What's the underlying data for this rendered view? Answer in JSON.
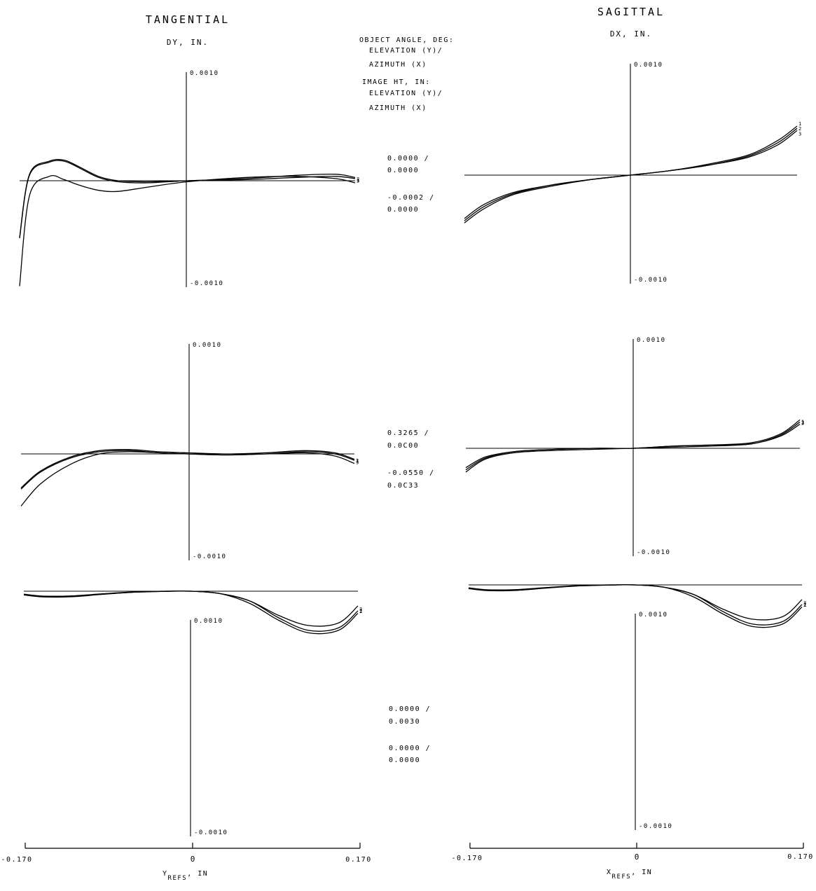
{
  "chart_data": {
    "type": "line",
    "headers": {
      "tangential_title": "TANGENTIAL",
      "tangential_ylabel": "DY, IN.",
      "sagittal_title": "SAGITTAL",
      "sagittal_ylabel": "DX, IN.",
      "object_angle_label": [
        "OBJECT ANGLE, DEG:",
        "ELEVATION (Y)/",
        "AZIMUTH (X)"
      ],
      "image_ht_label": [
        "IMAGE HT, IN:",
        "ELEVATION (Y)/",
        "AZIMUTH (X)"
      ]
    },
    "x_axis": {
      "tangential_label": "Y",
      "tangential_subscript": "REFS",
      "tangential_unit": ", IN",
      "sagittal_label": "X",
      "sagittal_subscript": "REFS",
      "sagittal_unit": ", IN",
      "range": [
        -0.17,
        0.17
      ],
      "tick_left": "-0.170",
      "tick_mid": "0",
      "tick_right": "0.170"
    },
    "y_range": [
      -0.001,
      0.001
    ],
    "y_tick_top": "0.0010",
    "y_tick_bottom": "-0.0010",
    "rows": [
      {
        "field_labels": [
          "0.0000 /",
          "0.0000",
          "-0.0002 /",
          "0.0000"
        ],
        "tangential": {
          "series": [
            {
              "name": "1",
              "x": [
                -0.17,
                -0.16,
                -0.14,
                -0.125,
                -0.11,
                -0.09,
                -0.07,
                -0.04,
                0.0,
                0.06,
                0.11,
                0.15,
                0.17
              ],
              "y": [
                -0.00099,
                -0.00014,
                4e-05,
                1e-05,
                -4e-05,
                -9e-05,
                -0.0001,
                -6e-05,
                -1e-05,
                3e-05,
                4e-05,
                2e-05,
                -2e-05
              ]
            },
            {
              "name": "2",
              "x": [
                -0.17,
                -0.16,
                -0.14,
                -0.125,
                -0.11,
                -0.09,
                -0.07,
                -0.04,
                0.0,
                0.06,
                0.11,
                0.15,
                0.17
              ],
              "y": [
                -0.00054,
                5e-05,
                0.00017,
                0.00018,
                0.00012,
                3e-05,
                -1e-05,
                -2e-05,
                0.0,
                1e-05,
                3e-05,
                4e-05,
                2e-05
              ]
            },
            {
              "name": "3",
              "x": [
                -0.17,
                -0.16,
                -0.14,
                -0.125,
                -0.11,
                -0.09,
                -0.07,
                -0.04,
                0.0,
                0.06,
                0.11,
                0.15,
                0.17
              ],
              "y": [
                -0.00053,
                6e-05,
                0.00018,
                0.00019,
                0.00013,
                4e-05,
                0.0,
                -1e-05,
                0.0,
                2e-05,
                5e-05,
                6e-05,
                3e-05
              ]
            }
          ]
        },
        "sagittal": {
          "series": [
            {
              "name": "1",
              "x": [
                -0.17,
                -0.15,
                -0.12,
                -0.08,
                -0.04,
                0.0,
                0.04,
                0.08,
                0.12,
                0.15,
                0.17
              ],
              "y": [
                -0.00044,
                -0.00031,
                -0.00018,
                -0.0001,
                -4e-05,
                0.0,
                4e-05,
                0.0001,
                0.00018,
                0.00031,
                0.00044
              ]
            },
            {
              "name": "2",
              "x": [
                -0.17,
                -0.15,
                -0.12,
                -0.08,
                -0.04,
                0.0,
                0.04,
                0.08,
                0.12,
                0.15,
                0.17
              ],
              "y": [
                -0.00042,
                -0.00029,
                -0.00017,
                -9e-05,
                -4e-05,
                0.0,
                4e-05,
                9e-05,
                0.00017,
                0.00029,
                0.00042
              ]
            },
            {
              "name": "3",
              "x": [
                -0.17,
                -0.15,
                -0.12,
                -0.08,
                -0.04,
                0.0,
                0.04,
                0.08,
                0.12,
                0.15,
                0.17
              ],
              "y": [
                -0.0004,
                -0.00027,
                -0.00016,
                -9e-05,
                -4e-05,
                0.0,
                4e-05,
                9e-05,
                0.00016,
                0.00027,
                0.0004
              ]
            }
          ]
        }
      },
      {
        "field_labels": [
          "0.3265 /",
          "0.0C00",
          "-0.0550 /",
          "0.0C33"
        ],
        "tangential": {
          "series": [
            {
              "name": "1",
              "x": [
                -0.17,
                -0.15,
                -0.12,
                -0.09,
                -0.06,
                -0.03,
                0.0,
                0.04,
                0.08,
                0.12,
                0.15,
                0.17
              ],
              "y": [
                -0.00049,
                -0.00028,
                -0.0001,
                0.0,
                2e-05,
                1e-05,
                0.0,
                -1e-05,
                0.0,
                1e-05,
                -2e-05,
                -9e-05
              ]
            },
            {
              "name": "2",
              "x": [
                -0.17,
                -0.15,
                -0.12,
                -0.09,
                -0.06,
                -0.03,
                0.0,
                0.04,
                0.08,
                0.12,
                0.15,
                0.17
              ],
              "y": [
                -0.00033,
                -0.00017,
                -4e-05,
                2e-05,
                3e-05,
                1e-05,
                0.0,
                -1e-05,
                0.0,
                2e-05,
                0.0,
                -6e-05
              ]
            },
            {
              "name": "3",
              "x": [
                -0.17,
                -0.15,
                -0.12,
                -0.09,
                -0.06,
                -0.03,
                0.0,
                0.04,
                0.08,
                0.12,
                0.15,
                0.17
              ],
              "y": [
                -0.00032,
                -0.00016,
                -3e-05,
                3e-05,
                4e-05,
                2e-05,
                1e-05,
                0.0,
                1e-05,
                3e-05,
                1e-05,
                -5e-05
              ]
            }
          ]
        },
        "sagittal": {
          "series": [
            {
              "name": "1",
              "x": [
                -0.17,
                -0.15,
                -0.12,
                -0.08,
                -0.04,
                0.0,
                0.04,
                0.08,
                0.12,
                0.15,
                0.17
              ],
              "y": [
                -0.00022,
                -0.0001,
                -4e-05,
                -2e-05,
                -1e-05,
                0.0,
                1e-05,
                2e-05,
                4e-05,
                0.00011,
                0.00022
              ]
            },
            {
              "name": "2",
              "x": [
                -0.17,
                -0.15,
                -0.12,
                -0.08,
                -0.04,
                0.0,
                0.04,
                0.08,
                0.12,
                0.15,
                0.17
              ],
              "y": [
                -0.0002,
                -9e-05,
                -3e-05,
                -1e-05,
                0.0,
                0.0,
                2e-05,
                3e-05,
                4e-05,
                0.00012,
                0.00024
              ]
            },
            {
              "name": "3",
              "x": [
                -0.17,
                -0.15,
                -0.12,
                -0.08,
                -0.04,
                0.0,
                0.04,
                0.08,
                0.12,
                0.15,
                0.17
              ],
              "y": [
                -0.00018,
                -8e-05,
                -3e-05,
                -1e-05,
                0.0,
                0.0,
                2e-05,
                3e-05,
                5e-05,
                0.00013,
                0.00026
              ]
            }
          ]
        }
      },
      {
        "field_labels": [
          "0.0000 /",
          "0.0030",
          "0.0000 /",
          "0.0000"
        ],
        "tangential": {
          "series": [
            {
              "name": "1",
              "x": [
                -0.17,
                -0.15,
                -0.12,
                -0.09,
                -0.06,
                -0.03,
                0.0,
                0.03,
                0.06,
                0.09,
                0.12,
                0.15,
                0.17
              ],
              "y": [
                0.0001,
                0.00017,
                0.00016,
                9e-05,
                3e-05,
                0.0,
                0.0,
                -1e-05,
                -5e-05,
                -0.00012,
                -0.00017,
                -0.00016,
                -9e-05
              ]
            },
            {
              "name": "2",
              "x": [
                -0.17,
                -0.15,
                -0.12,
                -0.09,
                -0.06,
                -0.03,
                0.0,
                0.03,
                0.06,
                0.09,
                0.12,
                0.15,
                0.17
              ],
              "y": [
                0.00011,
                0.00018,
                0.00017,
                0.0001,
                4e-05,
                1e-05,
                0.0,
                -1e-05,
                -4e-05,
                -0.00011,
                -0.00016,
                -0.00015,
                -8e-05
              ]
            },
            {
              "name": "3",
              "x": [
                -0.17,
                -0.15,
                -0.12,
                -0.09,
                -0.06,
                -0.03,
                0.0,
                0.03,
                0.06,
                0.09,
                0.12,
                0.15,
                0.17
              ],
              "y": [
                0.00013,
                0.0002,
                0.00019,
                0.00011,
                4e-05,
                1e-05,
                0.0,
                -1e-05,
                -4e-05,
                -0.0001,
                -0.00014,
                -0.00013,
                -6e-05
              ]
            }
          ]
        },
        "sagittal": {
          "series": [
            {
              "name": "1",
              "x": [
                -0.17,
                -0.15,
                -0.12,
                -0.09,
                -0.06,
                -0.03,
                0.0,
                0.03,
                0.06,
                0.09,
                0.12,
                0.15,
                0.17
              ],
              "y": [
                0.0001,
                0.00017,
                0.00016,
                9e-05,
                3e-05,
                0.0,
                0.0,
                -1e-05,
                -5e-05,
                -0.00012,
                -0.00017,
                -0.00016,
                -9e-05
              ]
            },
            {
              "name": "2",
              "x": [
                -0.17,
                -0.15,
                -0.12,
                -0.09,
                -0.06,
                -0.03,
                0.0,
                0.03,
                0.06,
                0.09,
                0.12,
                0.15,
                0.17
              ],
              "y": [
                0.00011,
                0.00018,
                0.00017,
                0.0001,
                4e-05,
                1e-05,
                0.0,
                -1e-05,
                -4e-05,
                -0.00011,
                -0.00016,
                -0.00015,
                -8e-05
              ]
            },
            {
              "name": "3",
              "x": [
                -0.17,
                -0.15,
                -0.12,
                -0.09,
                -0.06,
                -0.03,
                0.0,
                0.03,
                0.06,
                0.09,
                0.12,
                0.15,
                0.17
              ],
              "y": [
                0.00013,
                0.0002,
                0.00019,
                0.00011,
                4e-05,
                1e-05,
                0.0,
                -1e-05,
                -4e-05,
                -0.0001,
                -0.00014,
                -0.00013,
                -6e-05
              ]
            }
          ]
        }
      }
    ]
  }
}
